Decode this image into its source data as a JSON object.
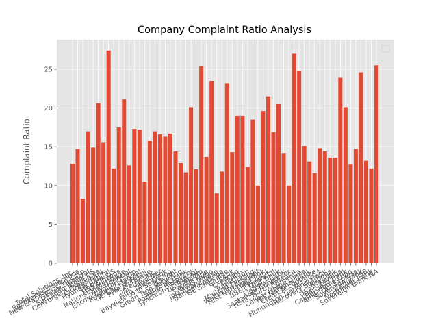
{
  "chart_data": {
    "type": "bar",
    "title": "Company Complaint Ratio Analysis",
    "xlabel": "",
    "ylabel": "Complaint Ratio",
    "ylim": [
      0,
      28.8
    ],
    "yticks": [
      0,
      5,
      10,
      15,
      20,
      25
    ],
    "grid": true,
    "legend": "top-right",
    "bar_color": "#E24A33",
    "background_color": "#E5E5E5",
    "categories": [
      "Total Solutions, Inc.",
      "Recovery Connections",
      "New Loan Servicing Corp",
      "Ocwen Financial",
      "Santander Bank US",
      "Convergent Resources",
      "Citizens Bank",
      "Hyundai Capital",
      "TD Bank US",
      "RBS Citizens",
      "Nationstar Mortgage",
      "Ally Financial",
      "Encore Capital Group",
      "Regions Financial",
      "GE Capital Retail",
      "PHH Mortgage",
      "Seterus, Inc.",
      "Discover",
      "Fifth Third Bank",
      "Bayview Loan Servicing",
      "Navient",
      "Green Tree Servicing",
      "SunTrust Bank",
      "Portfolio Recovery",
      "Synchrony Financial",
      "US Bancorp",
      "Capital One",
      "Wells Fargo",
      "JPMorgan Chase",
      "Bank of America",
      "GE Sallie Mae",
      "Citibank",
      "Experian",
      "Equifax",
      "TransUnion",
      "Midland Funding",
      "Walter Investment",
      "First National Bank",
      "PNC Bank",
      "BB&T Financial",
      "M&T Bank",
      "Flagstar Bank",
      "Santander Consumer",
      "HSBC North America",
      "Comerica",
      "Caliber Home Loans",
      "TCF National Bank",
      "Credit Acceptance",
      "EOS CCA",
      "Huntington National Bank",
      "Recovery Solutions",
      "KeyBank",
      "USAA Savings",
      "Barclays Bank",
      "Caliber Home Loan",
      "American Express",
      "Sovereign Bank",
      "Cenlar FSB",
      "Northwest Bank",
      "Sovereign Bank NA"
    ],
    "values": [
      12.8,
      14.7,
      8.3,
      17.0,
      14.9,
      20.6,
      15.6,
      27.4,
      12.2,
      17.5,
      21.1,
      12.6,
      17.3,
      17.2,
      10.5,
      15.8,
      17.0,
      16.6,
      16.3,
      16.7,
      14.4,
      12.9,
      11.7,
      20.1,
      12.1,
      25.4,
      13.7,
      23.5,
      9.0,
      11.8,
      23.2,
      14.3,
      19.0,
      19.0,
      12.4,
      18.5,
      10.0,
      19.6,
      21.5,
      16.9,
      20.5,
      14.2,
      10.0,
      27.0,
      24.8,
      15.1,
      13.1,
      11.6,
      14.8,
      14.4,
      13.6,
      13.6,
      23.9,
      20.1,
      12.7,
      14.7,
      24.6,
      13.2,
      12.2,
      25.5
    ]
  }
}
